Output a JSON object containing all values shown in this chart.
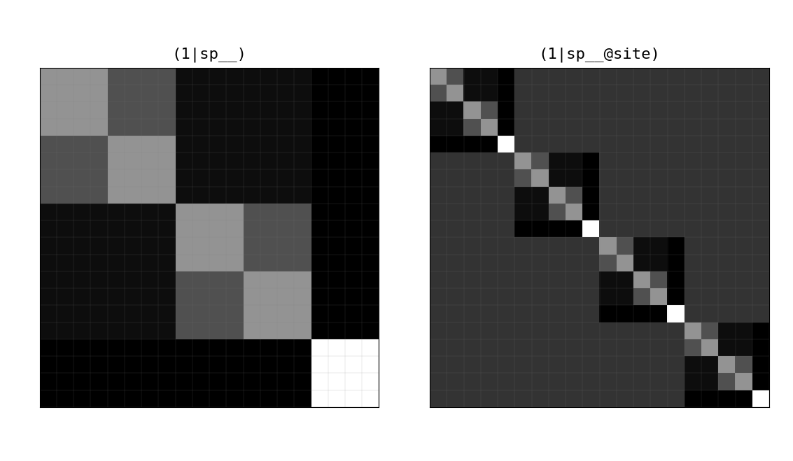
{
  "title1": "(1|sp__)",
  "title2": "(1|sp__@site)",
  "background_color": "#ffffff",
  "title_fontsize": 16,
  "figsize": [
    11.33,
    6.59
  ],
  "n_sp": 5,
  "n_site": 4
}
